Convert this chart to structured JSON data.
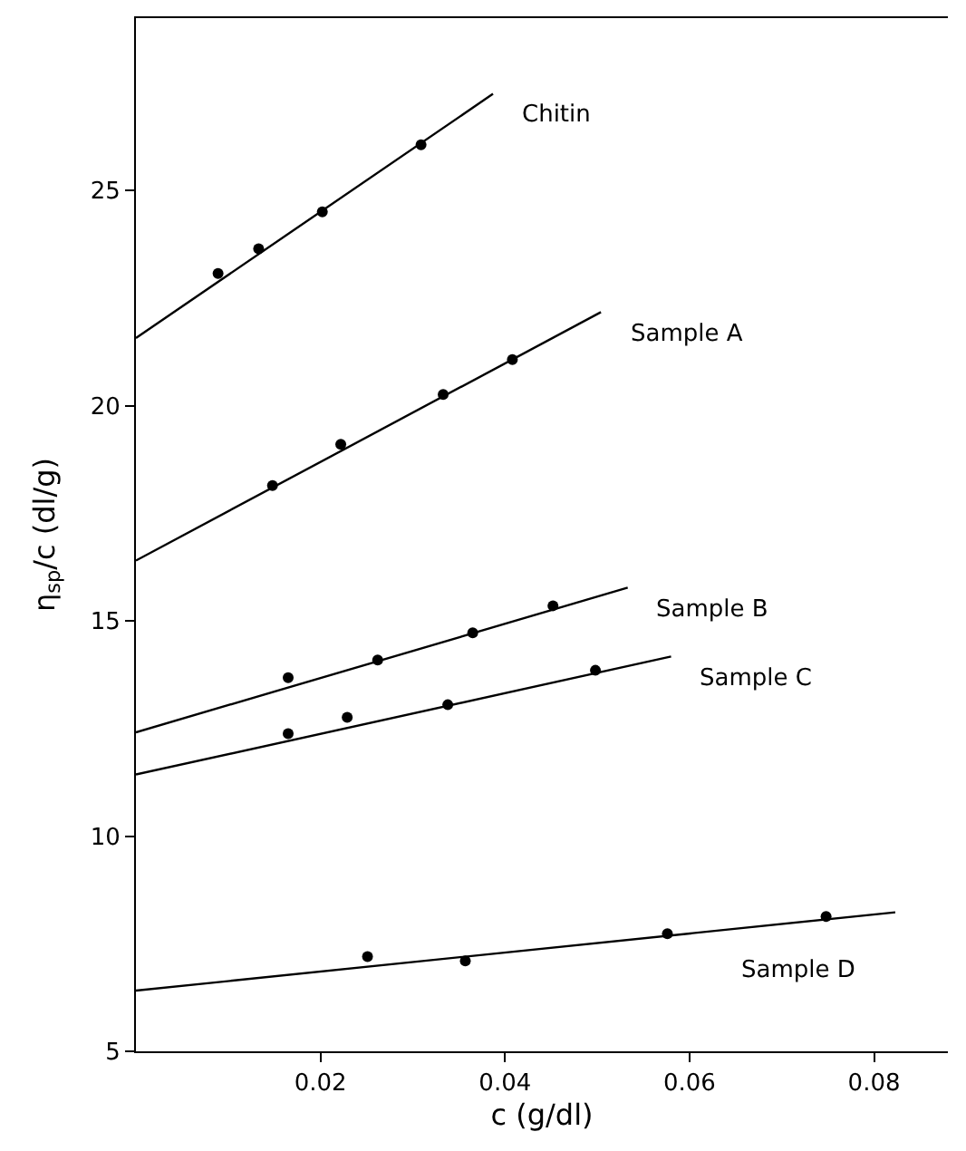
{
  "chart_data": {
    "type": "scatter",
    "xlabel": "c (g/dl)",
    "ylabel": "η$_{sp}$/c (dl/g)",
    "xlim": [
      0,
      0.088
    ],
    "ylim": [
      5,
      29
    ],
    "xticks": [
      0.02,
      0.04,
      0.06,
      0.08
    ],
    "yticks": [
      5,
      10,
      15,
      20,
      25
    ],
    "series": [
      {
        "color": "#000000",
        "marker": "circle",
        "x": [
          0.0089,
          0.0133,
          0.0202,
          0.0309
        ],
        "values": [
          23.07,
          23.64,
          24.5,
          26.06
        ]
      },
      {
        "type": "line",
        "name": "Chitin",
        "marker": "none",
        "color": "#000000",
        "x": [
          0,
          0.0387
        ],
        "values": [
          21.57,
          27.24
        ]
      },
      {
        "color": "#000000",
        "marker": "circle",
        "x": [
          0.0148,
          0.0222,
          0.0333,
          0.0408
        ],
        "values": [
          18.14,
          19.1,
          20.26,
          21.07
        ]
      },
      {
        "type": "line",
        "name": "Sample A",
        "marker": "none",
        "color": "#000000",
        "x": [
          0,
          0.0504
        ],
        "values": [
          16.4,
          22.17
        ]
      },
      {
        "color": "#000000",
        "marker": "circle",
        "x": [
          0.0165,
          0.0262,
          0.0365,
          0.0452
        ],
        "values": [
          13.68,
          14.09,
          14.72,
          15.35
        ]
      },
      {
        "type": "line",
        "name": "Sample B",
        "marker": "none",
        "color": "#000000",
        "x": [
          0,
          0.0533
        ],
        "values": [
          12.41,
          15.77
        ]
      },
      {
        "color": "#000000",
        "marker": "circle",
        "x": [
          0.0165,
          0.0229,
          0.0338,
          0.0498
        ],
        "values": [
          12.38,
          12.76,
          13.05,
          13.85
        ]
      },
      {
        "type": "line",
        "name": "Sample C",
        "marker": "none",
        "color": "#000000",
        "x": [
          0,
          0.058
        ],
        "values": [
          11.43,
          14.17
        ]
      },
      {
        "color": "#000000",
        "marker": "circle",
        "x": [
          0.0251,
          0.0357,
          0.0576,
          0.0748
        ],
        "values": [
          7.2,
          7.1,
          7.73,
          8.13
        ]
      },
      {
        "type": "line",
        "name": "Sample D",
        "marker": "none",
        "color": "#000000",
        "x": [
          0,
          0.0823
        ],
        "values": [
          6.41,
          8.23
        ]
      }
    ]
  }
}
